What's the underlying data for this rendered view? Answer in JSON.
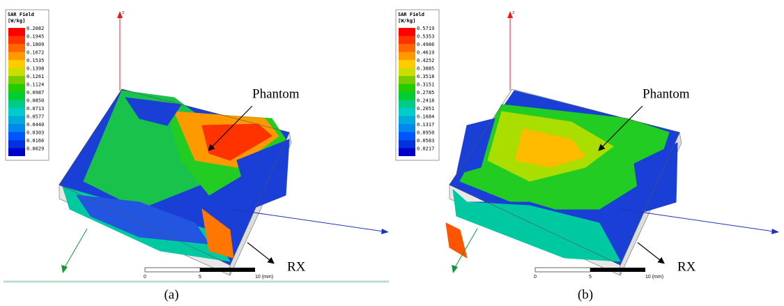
{
  "panels": [
    {
      "legend": {
        "title": "SAR Field",
        "unit": "[W/kg]",
        "values": [
          "0.2082",
          "0.1945",
          "0.1809",
          "0.1672",
          "0.1535",
          "0.1398",
          "0.1261",
          "0.1124",
          "0.0987",
          "0.0850",
          "0.0713",
          "0.0577",
          "0.0440",
          "0.0303",
          "0.0166",
          "0.0029"
        ]
      },
      "axis_label": "z",
      "phantom_label": "Phantom",
      "rx_label": "RX",
      "scale": {
        "start": "0",
        "mid": "5",
        "end": "10 (mm)"
      },
      "caption": "(a)"
    },
    {
      "legend": {
        "title": "SAR Field",
        "unit": "[W/kg]",
        "values": [
          "0.5719",
          "0.5353",
          "0.4986",
          "0.4619",
          "0.4252",
          "0.3885",
          "0.3518",
          "0.3151",
          "0.2785",
          "0.2418",
          "0.2051",
          "0.1684",
          "0.1317",
          "0.0950",
          "0.0583",
          "0.0217"
        ]
      },
      "axis_label": "z",
      "phantom_label": "Phantom",
      "rx_label": "RX",
      "scale": {
        "start": "0",
        "mid": "5",
        "end": "10 (mm)"
      },
      "caption": "(b)"
    }
  ]
}
